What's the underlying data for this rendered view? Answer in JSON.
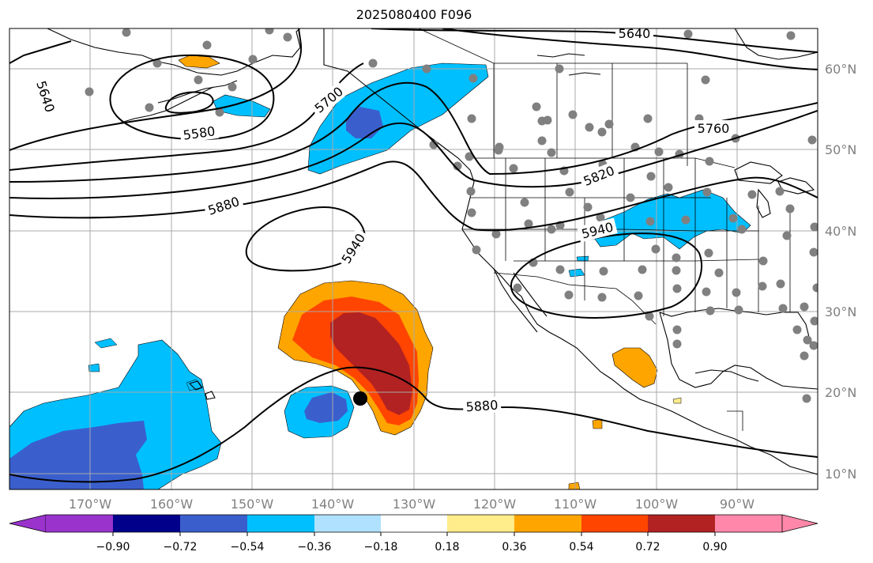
{
  "title": "2025080400 F096",
  "lat_labels": [
    "60°N",
    "50°N",
    "40°N",
    "30°N",
    "20°N",
    "10°N"
  ],
  "lon_labels": [
    "170°W",
    "160°W",
    "150°W",
    "140°W",
    "130°W",
    "120°W",
    "110°W",
    "100°W",
    "90°W"
  ],
  "contour_labels": [
    "5640",
    "5640",
    "5580",
    "5700",
    "5760",
    "5820",
    "5880",
    "5940",
    "5940",
    "5880"
  ],
  "colorbar": {
    "ticks": [
      "−0.90",
      "−0.72",
      "−0.54",
      "−0.36",
      "−0.18",
      "0.18",
      "0.36",
      "0.54",
      "0.72",
      "0.90"
    ],
    "colors": [
      "#9933cc",
      "#00008b",
      "#3a5fcd",
      "#00bfff",
      "#b0e2ff",
      "#ffffff",
      "#ffec8b",
      "#ffa500",
      "#ff4500",
      "#b22222",
      "#ff88aa"
    ]
  },
  "shading_colors": {
    "blue_light": "#00bfff",
    "blue_dark": "#3a5fcd",
    "orange": "#ffa500",
    "red_orange": "#ff4500",
    "dark_red": "#b22222",
    "yellow": "#ffec8b"
  },
  "station_marker_color": "#808080",
  "center_marker_color": "#000000"
}
